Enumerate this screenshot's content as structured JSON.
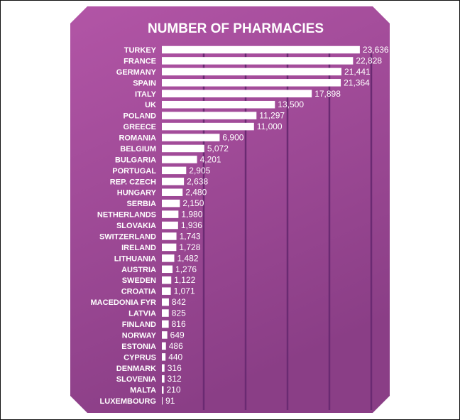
{
  "chart_data": {
    "type": "bar",
    "orientation": "horizontal",
    "title": "NUMBER OF PHARMACIES",
    "categories": [
      "TURKEY",
      "FRANCE",
      "GERMANY",
      "SPAIN",
      "ITALY",
      "UK",
      "POLAND",
      "GREECE",
      "ROMANIA",
      "BELGIUM",
      "BULGARIA",
      "PORTUGAL",
      "REP. CZECH",
      "HUNGARY",
      "SERBIA",
      "NETHERLANDS",
      "SLOVAKIA",
      "SWITZERLAND",
      "IRELAND",
      "LITHUANIA",
      "AUSTRIA",
      "SWEDEN",
      "CROATIA",
      "MACEDONIA FYR",
      "LATVIA",
      "FINLAND",
      "NORWAY",
      "ESTONIA",
      "CYPRUS",
      "DENMARK",
      "SLOVENIA",
      "MALTA",
      "LUXEMBOURG"
    ],
    "values": [
      23636,
      22828,
      21441,
      21364,
      17898,
      13500,
      11297,
      11000,
      6900,
      5072,
      4201,
      2905,
      2638,
      2480,
      2150,
      1980,
      1936,
      1743,
      1728,
      1482,
      1276,
      1122,
      1071,
      842,
      825,
      816,
      649,
      486,
      440,
      316,
      312,
      210,
      91
    ],
    "value_labels": [
      "23,636",
      "22,828",
      "21,441",
      "21,364",
      "17,898",
      "13,500",
      "11,297",
      "11,000",
      "6,900",
      "5,072",
      "4,201",
      "2,905",
      "2,638",
      "2,480",
      "2,150",
      "1,980",
      "1,936",
      "1,743",
      "1,728",
      "1,482",
      "1,276",
      "1,122",
      "1,071",
      "842",
      "825",
      "816",
      "649",
      "486",
      "440",
      "316",
      "312",
      "210",
      "91"
    ],
    "xlim": [
      0,
      25000
    ],
    "gridlines_x": [
      5000,
      10000,
      15000,
      20000,
      25000
    ],
    "grid": true,
    "legend": "none"
  },
  "colors": {
    "panel_light": "#b255a6",
    "panel_dark": "#8a3e86",
    "bar": "#ffffff",
    "gridline": "#6a2a72",
    "text": "#ffffff"
  }
}
